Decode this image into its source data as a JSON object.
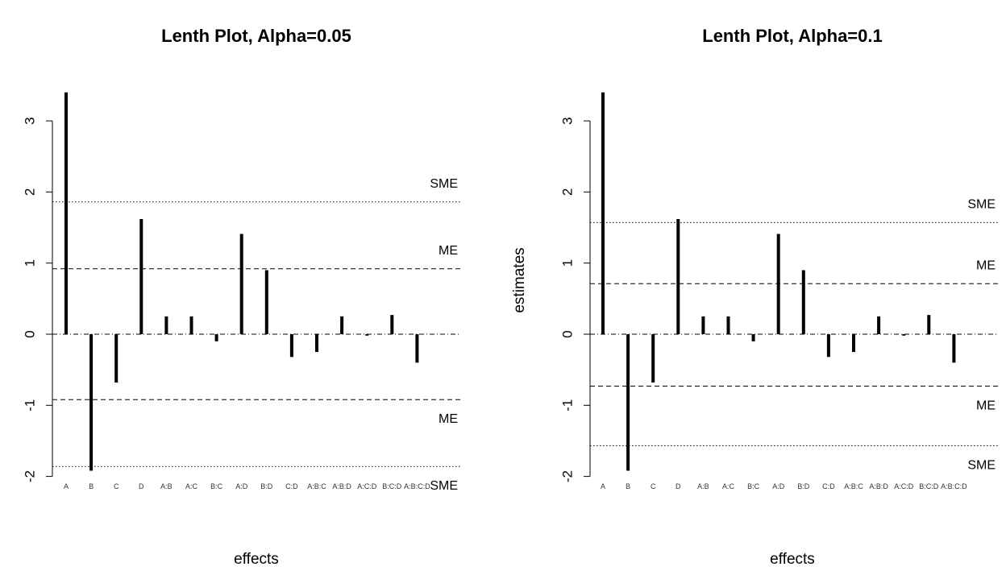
{
  "chart_data": [
    {
      "type": "bar",
      "title": "Lenth Plot, Alpha=0.05",
      "xlabel": "effects",
      "ylabel": "",
      "ylim": [
        -2,
        3.4
      ],
      "yticks": [
        -2,
        -1,
        0,
        1,
        2,
        3
      ],
      "categories": [
        "A",
        "B",
        "C",
        "D",
        "A:B",
        "A:C",
        "B:C",
        "A:D",
        "B:D",
        "C:D",
        "A:B:C",
        "A:B:D",
        "A:C:D",
        "B:C:D",
        "A:B:C:D"
      ],
      "values": [
        3.4,
        -1.92,
        -0.68,
        1.62,
        0.25,
        0.25,
        -0.1,
        1.41,
        0.9,
        -0.32,
        -0.25,
        0.25,
        -0.02,
        0.27,
        -0.4
      ],
      "reference_lines": [
        {
          "label": "SME",
          "value": 1.86,
          "style": "dotted"
        },
        {
          "label": "ME",
          "value": 0.92,
          "style": "dashed"
        },
        {
          "label": "ME",
          "value": -0.92,
          "style": "dashed"
        },
        {
          "label": "SME",
          "value": -1.86,
          "style": "dotted"
        }
      ]
    },
    {
      "type": "bar",
      "title": "Lenth Plot, Alpha=0.1",
      "xlabel": "effects",
      "ylabel": "estimates",
      "ylim": [
        -2,
        3.4
      ],
      "yticks": [
        -2,
        -1,
        0,
        1,
        2,
        3
      ],
      "categories": [
        "A",
        "B",
        "C",
        "D",
        "A:B",
        "A:C",
        "B:C",
        "A:D",
        "B:D",
        "C:D",
        "A:B:C",
        "A:B:D",
        "A:C:D",
        "B:C:D",
        "A:B:C:D"
      ],
      "values": [
        3.4,
        -1.92,
        -0.68,
        1.62,
        0.25,
        0.25,
        -0.1,
        1.41,
        0.9,
        -0.32,
        -0.25,
        0.25,
        -0.02,
        0.27,
        -0.4
      ],
      "reference_lines": [
        {
          "label": "SME",
          "value": 1.57,
          "style": "dotted"
        },
        {
          "label": "ME",
          "value": 0.71,
          "style": "dashed"
        },
        {
          "label": "ME",
          "value": -0.73,
          "style": "dashed"
        },
        {
          "label": "SME",
          "value": -1.57,
          "style": "dotted"
        }
      ]
    }
  ]
}
